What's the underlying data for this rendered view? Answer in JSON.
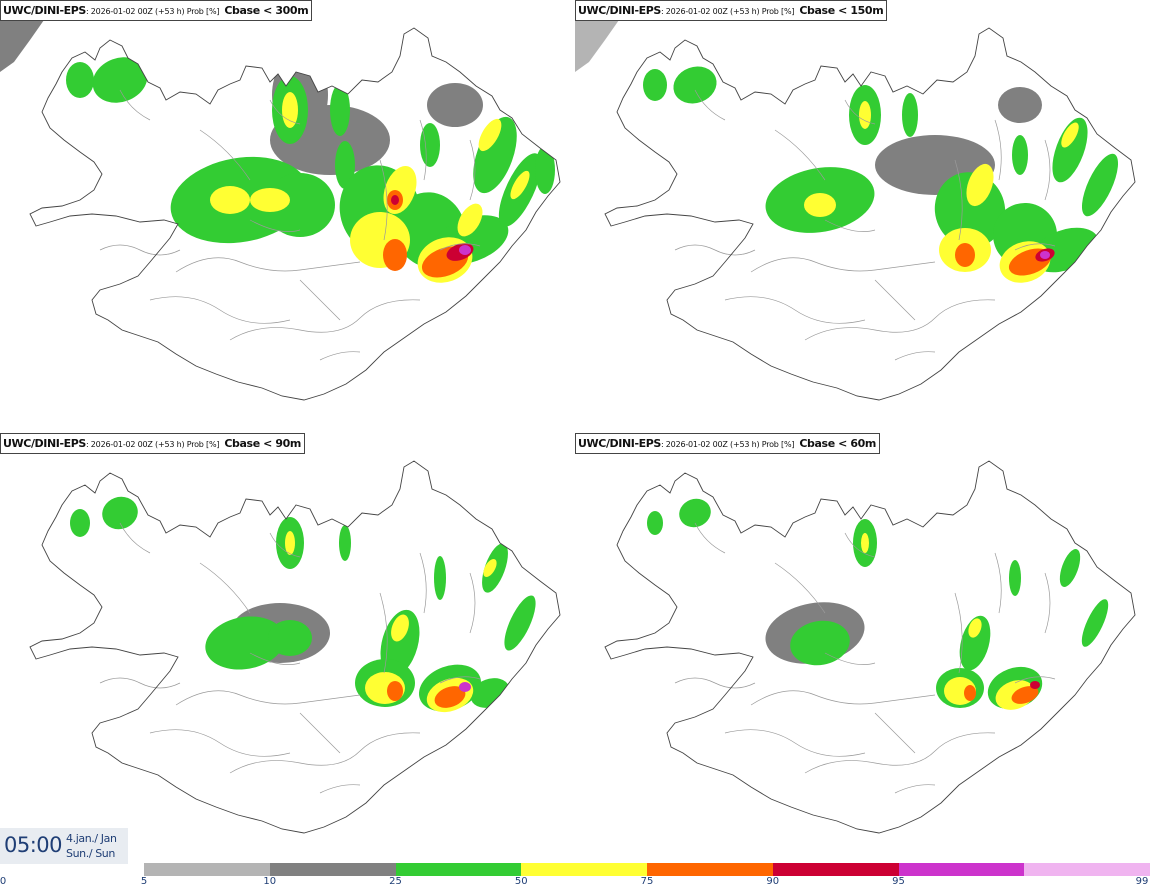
{
  "panels": [
    {
      "model": "UWC/DINI-EPS",
      "info": ": 2026-01-02 00Z (+53 h) Prob [%]",
      "threshold": "Cbase < 300m"
    },
    {
      "model": "UWC/DINI-EPS",
      "info": ": 2026-01-02 00Z (+53 h) Prob [%]",
      "threshold": "Cbase < 150m"
    },
    {
      "model": "UWC/DINI-EPS",
      "info": ": 2026-01-02 00Z (+53 h) Prob [%]",
      "threshold": "Cbase < 90m"
    },
    {
      "model": "UWC/DINI-EPS",
      "info": ": 2026-01-02 00Z (+53 h) Prob [%]",
      "threshold": "Cbase < 60m"
    }
  ],
  "time_box": {
    "time": "05:00",
    "date_line1": "4.jan./ Jan",
    "date_line2": "Sun./ Sun"
  },
  "legend": {
    "ticks": [
      "0",
      "5",
      "10",
      "25",
      "50",
      "75",
      "90",
      "95",
      "99"
    ],
    "colors": [
      "#ffffff",
      "#b4b4b4",
      "#808080",
      "#33cc33",
      "#ffff33",
      "#ff6600",
      "#cc0033",
      "#cc33cc",
      "#f0b4f0"
    ],
    "color_names": [
      "white",
      "light-gray",
      "dark-gray",
      "green",
      "yellow",
      "orange",
      "crimson",
      "magenta",
      "light-pink"
    ]
  }
}
